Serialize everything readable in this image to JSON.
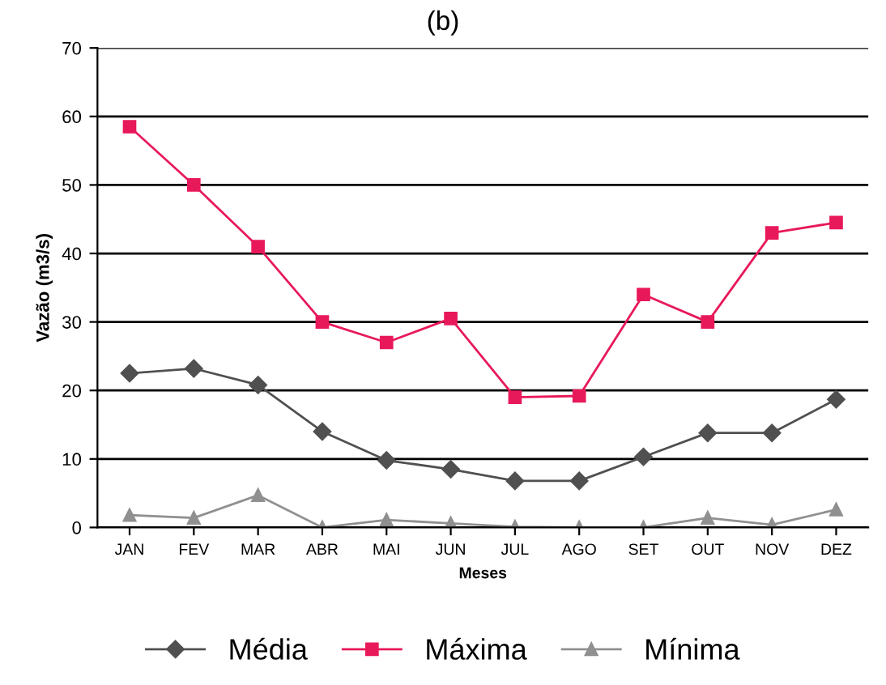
{
  "chart_data": {
    "type": "line",
    "title": "(b)",
    "xlabel": "Meses",
    "ylabel": "Vazão (m3/s)",
    "categories": [
      "JAN",
      "FEV",
      "MAR",
      "ABR",
      "MAI",
      "JUN",
      "JUL",
      "AGO",
      "SET",
      "OUT",
      "NOV",
      "DEZ"
    ],
    "series": [
      {
        "name": "Média",
        "color": "#505050",
        "marker": "diamond",
        "values": [
          22.5,
          23.2,
          20.8,
          14,
          9.8,
          8.5,
          6.8,
          6.8,
          10.3,
          13.8,
          13.8,
          18.7
        ]
      },
      {
        "name": "Máxima",
        "color": "#e8195a",
        "marker": "square",
        "values": [
          58.5,
          50,
          41,
          30,
          27,
          30.5,
          19,
          19.2,
          34,
          30,
          43,
          44.5
        ]
      },
      {
        "name": "Mínima",
        "color": "#909090",
        "marker": "triangle",
        "values": [
          1.8,
          1.4,
          4.7,
          0,
          1.1,
          0.6,
          0.1,
          0,
          0,
          1.4,
          0.4,
          2.6
        ]
      }
    ],
    "ylim": [
      0,
      70
    ],
    "yticks": [
      0,
      10,
      20,
      30,
      40,
      50,
      60,
      70
    ],
    "grid": "y",
    "legend": "bottom",
    "line_style": "solid"
  }
}
